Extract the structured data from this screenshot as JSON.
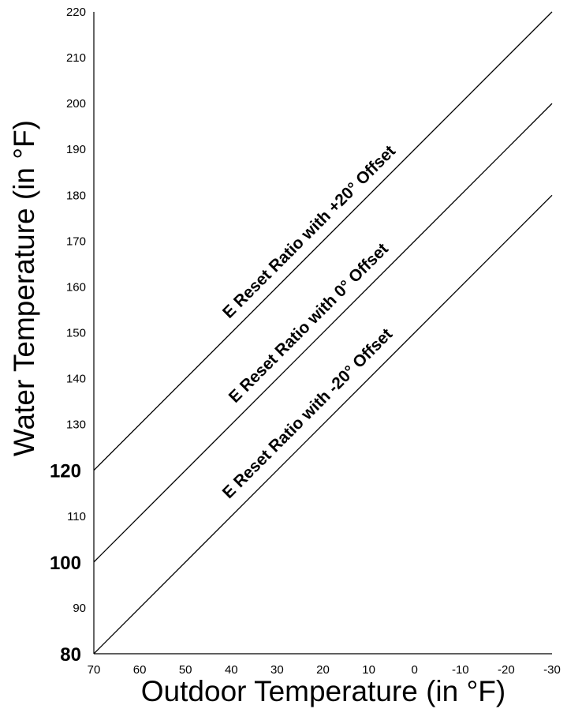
{
  "chart_data": {
    "type": "line",
    "title": "",
    "xlabel": "Outdoor Temperature (in °F)",
    "ylabel": "Water Temperature (in °F)",
    "xlim": [
      70,
      -30
    ],
    "ylim": [
      80,
      220
    ],
    "x_ticks": [
      "70",
      "60",
      "50",
      "40",
      "30",
      "20",
      "10",
      "0",
      "-10",
      "-20",
      "-30"
    ],
    "y_ticks": [
      "80",
      "90",
      "100",
      "110",
      "120",
      "130",
      "140",
      "150",
      "160",
      "170",
      "180",
      "190",
      "200",
      "210",
      "220"
    ],
    "y_ticks_bold": [
      "80",
      "100",
      "120"
    ],
    "grid": false,
    "legend": "none",
    "series": [
      {
        "name": "E Reset Ratio with +20° Offset",
        "x": [
          70,
          -30
        ],
        "y": [
          120,
          220
        ]
      },
      {
        "name": "E Reset Ratio with 0° Offset",
        "x": [
          70,
          -30
        ],
        "y": [
          100,
          200
        ]
      },
      {
        "name": "E Reset Ratio with -20° Offset",
        "x": [
          70,
          -30
        ],
        "y": [
          80,
          180
        ]
      }
    ]
  }
}
